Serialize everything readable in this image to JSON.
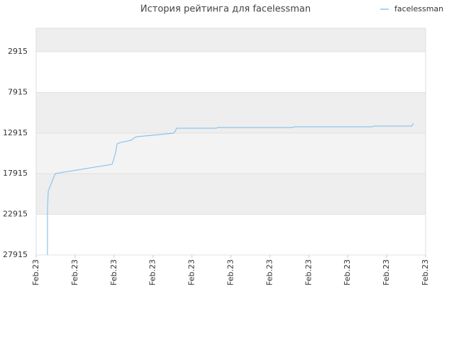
{
  "chart_data": {
    "type": "line",
    "title": "История рейтинга для facelessman",
    "x": [
      0.29,
      0.29,
      0.31,
      0.38,
      0.49,
      1.95,
      1.99,
      2.04,
      2.08,
      2.17,
      2.44,
      2.53,
      2.59,
      3.53,
      3.57,
      3.61,
      4.63,
      4.66,
      6.59,
      6.63,
      8.63,
      8.67,
      9.64,
      9.69
    ],
    "series": [
      {
        "name": "facelessman",
        "color": "#8ec4ec",
        "values": [
          27915,
          22253,
          20076,
          19205,
          17898,
          16766,
          16156,
          15285,
          14240,
          14066,
          13805,
          13456,
          13369,
          12934,
          12672,
          12324,
          12324,
          12237,
          12237,
          12150,
          12150,
          12063,
          12063,
          11714
        ]
      }
    ],
    "xlim": [
      0,
      10
    ],
    "xticks": [
      {
        "value": 0,
        "label": "Feb.23"
      },
      {
        "value": 1,
        "label": "Feb.23"
      },
      {
        "value": 2,
        "label": "Feb.23"
      },
      {
        "value": 3,
        "label": "Feb.23"
      },
      {
        "value": 4,
        "label": "Feb.23"
      },
      {
        "value": 5,
        "label": "Feb.23"
      },
      {
        "value": 6,
        "label": "Feb.23"
      },
      {
        "value": 7,
        "label": "Feb.23"
      },
      {
        "value": 8,
        "label": "Feb.23"
      },
      {
        "value": 9,
        "label": "Feb.23"
      },
      {
        "value": 10,
        "label": "Feb.23"
      }
    ],
    "ylim": [
      27915,
      40
    ],
    "yticks": [
      2915,
      7915,
      12915,
      17915,
      22915,
      27915
    ],
    "grid": true,
    "legend": "top-right"
  }
}
